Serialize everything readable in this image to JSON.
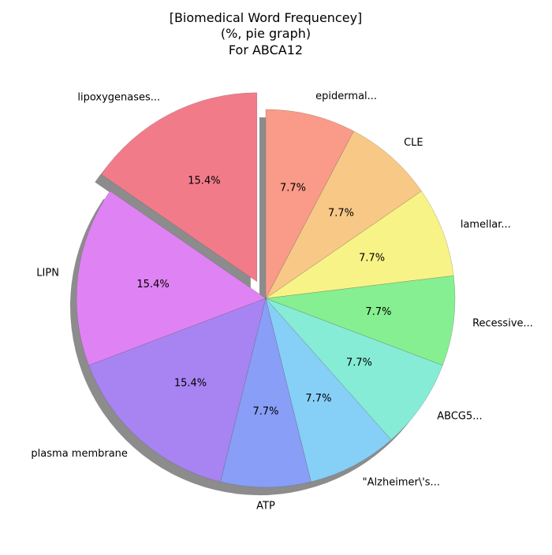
{
  "chart_data": {
    "type": "pie",
    "title": [
      "[Biomedical Word Frequencey]",
      "(%, pie graph)",
      "For ABCA12"
    ],
    "slices": [
      {
        "label": "lipoxygenases...",
        "value": 15.4,
        "pct_label": "15.4%",
        "color": "#f27b8a",
        "exploded": true
      },
      {
        "label": "LIPN",
        "value": 15.4,
        "pct_label": "15.4%",
        "color": "#df82f3"
      },
      {
        "label": "plasma membrane",
        "value": 15.4,
        "pct_label": "15.4%",
        "color": "#a884f3"
      },
      {
        "label": "ATP",
        "value": 7.7,
        "pct_label": "7.7%",
        "color": "#889ef7"
      },
      {
        "label": "\"Alzheimer\\'s...",
        "value": 7.7,
        "pct_label": "7.7%",
        "color": "#86cff6"
      },
      {
        "label": "ABCG5...",
        "value": 7.7,
        "pct_label": "7.7%",
        "color": "#86ecd6"
      },
      {
        "label": "Recessive...",
        "value": 7.7,
        "pct_label": "7.7%",
        "color": "#86ef91"
      },
      {
        "label": "lamellar...",
        "value": 7.7,
        "pct_label": "7.7%",
        "color": "#f8f386"
      },
      {
        "label": "CLE",
        "value": 7.7,
        "pct_label": "7.7%",
        "color": "#f8c886"
      },
      {
        "label": "epidermal...",
        "value": 7.7,
        "pct_label": "7.7%",
        "color": "#f99b88"
      }
    ],
    "shadow": true,
    "start_angle_deg": 90,
    "direction": "counterclockwise"
  }
}
